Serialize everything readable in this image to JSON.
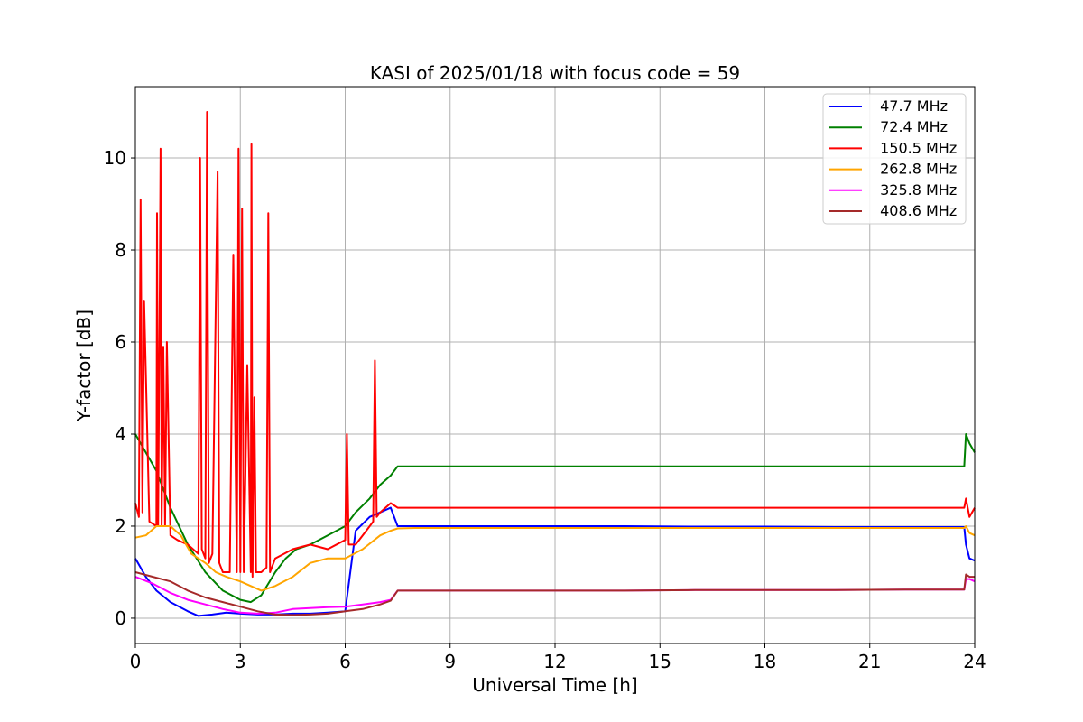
{
  "chart_data": {
    "type": "line",
    "title": "KASI of 2025/01/18 with focus code = 59",
    "xlabel": "Universal Time [h]",
    "ylabel": "Y-factor [dB]",
    "xlim": [
      0,
      24
    ],
    "ylim": [
      -0.55,
      11.55
    ],
    "xticks": [
      0,
      3,
      6,
      9,
      12,
      15,
      18,
      21,
      24
    ],
    "yticks": [
      0,
      2,
      4,
      6,
      8,
      10
    ],
    "grid": true,
    "legend_position": "top-right",
    "series": [
      {
        "name": " 47.7 MHz",
        "color": "#0000ff",
        "x": [
          0,
          0.3,
          0.6,
          1.0,
          1.5,
          1.8,
          2.2,
          2.6,
          3.0,
          3.5,
          4.0,
          4.5,
          5.0,
          5.5,
          6.0,
          6.3,
          6.7,
          7.0,
          7.3,
          7.5,
          8.0,
          10,
          12,
          14,
          16,
          18,
          20,
          22,
          23.7,
          23.75,
          23.85,
          24
        ],
        "y": [
          1.3,
          0.9,
          0.6,
          0.35,
          0.15,
          0.05,
          0.08,
          0.12,
          0.1,
          0.08,
          0.08,
          0.1,
          0.1,
          0.12,
          0.15,
          1.9,
          2.2,
          2.3,
          2.4,
          2.0,
          2.0,
          2.0,
          2.0,
          2.0,
          1.99,
          1.99,
          1.98,
          1.98,
          1.98,
          1.6,
          1.3,
          1.25
        ]
      },
      {
        "name": " 72.4 MHz",
        "color": "#008000",
        "x": [
          0,
          0.3,
          0.6,
          1.0,
          1.5,
          2.0,
          2.5,
          3.0,
          3.3,
          3.6,
          4.0,
          4.3,
          4.6,
          5.0,
          5.5,
          6.0,
          6.3,
          6.7,
          7.0,
          7.3,
          7.5,
          8.0,
          10,
          12,
          14,
          16,
          18,
          20,
          22,
          23.7,
          23.75,
          23.85,
          24
        ],
        "y": [
          4.0,
          3.6,
          3.2,
          2.4,
          1.6,
          1.0,
          0.6,
          0.4,
          0.35,
          0.5,
          1.0,
          1.3,
          1.5,
          1.6,
          1.8,
          2.0,
          2.3,
          2.6,
          2.9,
          3.1,
          3.3,
          3.3,
          3.3,
          3.3,
          3.3,
          3.3,
          3.3,
          3.3,
          3.3,
          3.3,
          4.0,
          3.8,
          3.6
        ]
      },
      {
        "name": " 150.5 MHz",
        "color": "#ff0000",
        "x": [
          0,
          0.1,
          0.15,
          0.2,
          0.25,
          0.4,
          0.6,
          0.62,
          0.65,
          0.7,
          0.72,
          0.75,
          0.8,
          0.85,
          0.9,
          1.0,
          1.2,
          1.5,
          1.8,
          1.85,
          1.9,
          2.0,
          2.05,
          2.1,
          2.2,
          2.35,
          2.4,
          2.5,
          2.7,
          2.8,
          2.9,
          2.95,
          3.0,
          3.05,
          3.1,
          3.2,
          3.3,
          3.32,
          3.35,
          3.4,
          3.45,
          3.6,
          3.75,
          3.8,
          3.85,
          4.0,
          4.5,
          5.0,
          5.5,
          6.0,
          6.05,
          6.1,
          6.3,
          6.6,
          6.8,
          6.85,
          6.9,
          7.0,
          7.3,
          7.5,
          8.0,
          10,
          12,
          14,
          16,
          18,
          20,
          22,
          23.7,
          23.75,
          23.85,
          24
        ],
        "y": [
          2.5,
          2.2,
          9.1,
          2.3,
          6.9,
          2.1,
          2.0,
          8.8,
          2.0,
          7.3,
          10.2,
          2.0,
          5.9,
          2.0,
          6.0,
          1.8,
          1.7,
          1.6,
          1.4,
          10.0,
          1.5,
          1.3,
          11.0,
          1.2,
          1.4,
          9.7,
          1.2,
          1.0,
          1.0,
          7.9,
          1.0,
          10.2,
          1.0,
          8.9,
          1.0,
          5.5,
          1.0,
          10.3,
          0.9,
          4.8,
          1.0,
          1.0,
          1.1,
          8.8,
          1.0,
          1.3,
          1.5,
          1.6,
          1.5,
          1.7,
          4.0,
          1.6,
          1.6,
          1.9,
          2.1,
          5.6,
          2.2,
          2.3,
          2.5,
          2.4,
          2.4,
          2.4,
          2.4,
          2.4,
          2.4,
          2.4,
          2.4,
          2.4,
          2.4,
          2.6,
          2.2,
          2.4
        ]
      },
      {
        "name": " 262.8 MHz",
        "color": "#ffa500",
        "x": [
          0,
          0.3,
          0.6,
          1.0,
          1.3,
          1.6,
          2.0,
          2.3,
          2.6,
          3.0,
          3.3,
          3.6,
          4.0,
          4.5,
          5.0,
          5.5,
          6.0,
          6.5,
          7.0,
          7.3,
          7.5,
          8.0,
          10,
          12,
          14,
          16,
          18,
          20,
          22,
          23.7,
          23.75,
          23.85,
          24
        ],
        "y": [
          1.75,
          1.8,
          2.0,
          2.0,
          1.8,
          1.4,
          1.2,
          1.0,
          0.9,
          0.8,
          0.7,
          0.6,
          0.7,
          0.9,
          1.2,
          1.3,
          1.3,
          1.5,
          1.8,
          1.9,
          1.95,
          1.96,
          1.96,
          1.96,
          1.96,
          1.96,
          1.96,
          1.96,
          1.96,
          1.96,
          2.0,
          1.85,
          1.8
        ]
      },
      {
        "name": " 325.8 MHz",
        "color": "#ff00ff",
        "x": [
          0,
          0.5,
          1.0,
          1.5,
          2.0,
          2.5,
          3.0,
          3.5,
          4.0,
          4.5,
          5.0,
          5.5,
          6.0,
          6.5,
          7.0,
          7.3,
          7.5,
          8.0,
          10,
          12,
          14,
          16,
          18,
          20,
          22,
          23.7,
          23.75,
          23.85,
          24
        ],
        "y": [
          0.9,
          0.75,
          0.55,
          0.4,
          0.3,
          0.2,
          0.12,
          0.1,
          0.12,
          0.2,
          0.22,
          0.24,
          0.25,
          0.3,
          0.35,
          0.4,
          0.6,
          0.6,
          0.6,
          0.6,
          0.6,
          0.61,
          0.61,
          0.61,
          0.62,
          0.62,
          0.85,
          0.85,
          0.8
        ]
      },
      {
        "name": " 408.6 MHz",
        "color": "#a52a2a",
        "x": [
          0,
          0.5,
          1.0,
          1.5,
          2.0,
          2.5,
          3.0,
          3.5,
          4.0,
          4.5,
          5.0,
          5.5,
          6.0,
          6.5,
          7.0,
          7.3,
          7.5,
          8.0,
          10,
          12,
          14,
          16,
          18,
          20,
          22,
          23.7,
          23.75,
          23.85,
          24
        ],
        "y": [
          1.0,
          0.9,
          0.8,
          0.6,
          0.45,
          0.35,
          0.25,
          0.15,
          0.08,
          0.07,
          0.08,
          0.1,
          0.15,
          0.2,
          0.3,
          0.38,
          0.6,
          0.6,
          0.6,
          0.6,
          0.6,
          0.61,
          0.61,
          0.61,
          0.62,
          0.62,
          0.95,
          0.9,
          0.9
        ]
      }
    ]
  }
}
